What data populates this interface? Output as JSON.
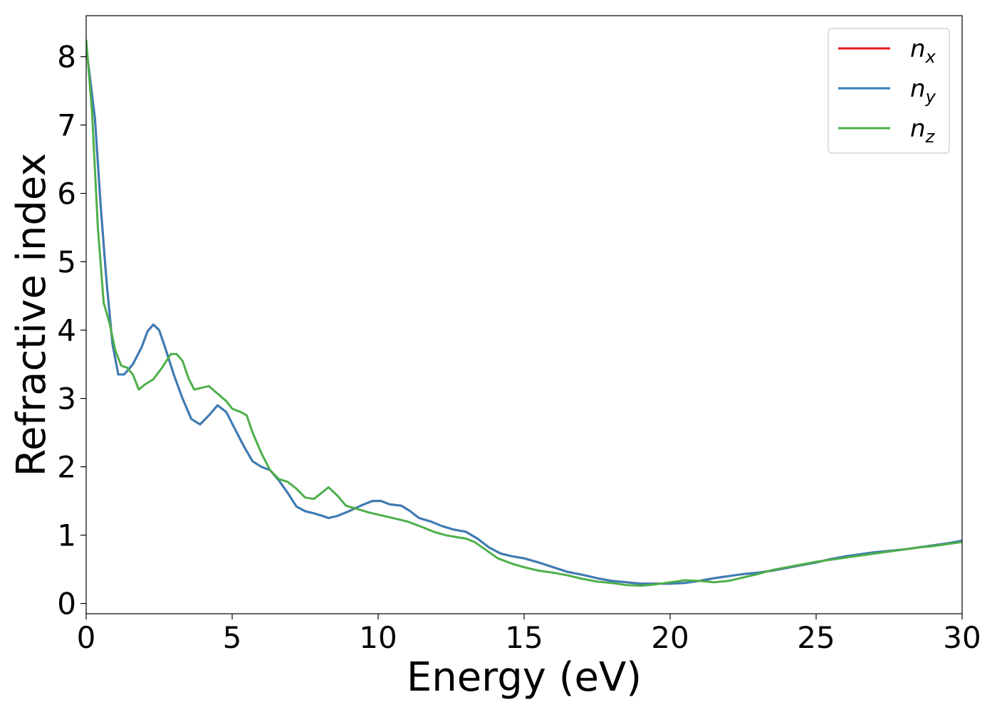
{
  "chart_data": {
    "type": "line",
    "xlabel": "Energy (eV)",
    "ylabel": "Refractive index",
    "xlim": [
      0,
      30
    ],
    "ylim": [
      -0.15,
      8.6
    ],
    "x_ticks": [
      "0",
      "5",
      "10",
      "15",
      "20",
      "25",
      "30"
    ],
    "y_ticks": [
      "0",
      "1",
      "2",
      "3",
      "4",
      "5",
      "6",
      "7",
      "8"
    ],
    "grid": false,
    "legend_position": "top-right",
    "series": [
      {
        "name": "n",
        "subscript": "x",
        "color": "#e41a1c",
        "points": [
          [
            0,
            8.15
          ],
          [
            0.3,
            7.1
          ],
          [
            0.5,
            5.8
          ],
          [
            0.7,
            4.7
          ],
          [
            0.9,
            3.8
          ],
          [
            1.1,
            3.35
          ],
          [
            1.3,
            3.35
          ],
          [
            1.6,
            3.5
          ],
          [
            1.9,
            3.75
          ],
          [
            2.1,
            3.98
          ],
          [
            2.3,
            4.08
          ],
          [
            2.5,
            4.0
          ],
          [
            2.7,
            3.75
          ],
          [
            3.0,
            3.35
          ],
          [
            3.3,
            3.0
          ],
          [
            3.6,
            2.7
          ],
          [
            3.9,
            2.62
          ],
          [
            4.2,
            2.75
          ],
          [
            4.5,
            2.9
          ],
          [
            4.8,
            2.8
          ],
          [
            5.1,
            2.55
          ],
          [
            5.4,
            2.3
          ],
          [
            5.7,
            2.08
          ],
          [
            6.0,
            2.0
          ],
          [
            6.3,
            1.95
          ],
          [
            6.6,
            1.8
          ],
          [
            6.9,
            1.62
          ],
          [
            7.2,
            1.42
          ],
          [
            7.5,
            1.35
          ],
          [
            7.8,
            1.32
          ],
          [
            8.1,
            1.28
          ],
          [
            8.3,
            1.25
          ],
          [
            8.6,
            1.28
          ],
          [
            9.0,
            1.35
          ],
          [
            9.4,
            1.43
          ],
          [
            9.8,
            1.5
          ],
          [
            10.1,
            1.5
          ],
          [
            10.4,
            1.45
          ],
          [
            10.8,
            1.43
          ],
          [
            11.1,
            1.35
          ],
          [
            11.4,
            1.25
          ],
          [
            11.8,
            1.2
          ],
          [
            12.2,
            1.13
          ],
          [
            12.6,
            1.08
          ],
          [
            13.0,
            1.05
          ],
          [
            13.4,
            0.95
          ],
          [
            13.8,
            0.82
          ],
          [
            14.2,
            0.73
          ],
          [
            14.6,
            0.69
          ],
          [
            15.0,
            0.66
          ],
          [
            15.5,
            0.6
          ],
          [
            16.0,
            0.53
          ],
          [
            16.5,
            0.46
          ],
          [
            17.0,
            0.42
          ],
          [
            17.5,
            0.37
          ],
          [
            18.0,
            0.33
          ],
          [
            18.5,
            0.31
          ],
          [
            19.0,
            0.29
          ],
          [
            19.5,
            0.29
          ],
          [
            20.0,
            0.29
          ],
          [
            20.5,
            0.3
          ],
          [
            21.0,
            0.33
          ],
          [
            21.5,
            0.37
          ],
          [
            22.0,
            0.4
          ],
          [
            22.5,
            0.43
          ],
          [
            23.0,
            0.45
          ],
          [
            23.5,
            0.48
          ],
          [
            24.0,
            0.52
          ],
          [
            24.5,
            0.56
          ],
          [
            25.0,
            0.6
          ],
          [
            25.5,
            0.65
          ],
          [
            26.0,
            0.69
          ],
          [
            26.5,
            0.72
          ],
          [
            27.0,
            0.75
          ],
          [
            27.5,
            0.77
          ],
          [
            28.0,
            0.79
          ],
          [
            28.5,
            0.82
          ],
          [
            29.0,
            0.85
          ],
          [
            29.5,
            0.88
          ],
          [
            30.0,
            0.92
          ]
        ]
      },
      {
        "name": "n",
        "subscript": "y",
        "color": "#377eb8",
        "points": [
          [
            0,
            8.15
          ],
          [
            0.3,
            7.1
          ],
          [
            0.5,
            5.8
          ],
          [
            0.7,
            4.7
          ],
          [
            0.9,
            3.8
          ],
          [
            1.1,
            3.35
          ],
          [
            1.3,
            3.35
          ],
          [
            1.6,
            3.5
          ],
          [
            1.9,
            3.75
          ],
          [
            2.1,
            3.98
          ],
          [
            2.3,
            4.08
          ],
          [
            2.5,
            4.0
          ],
          [
            2.7,
            3.75
          ],
          [
            3.0,
            3.35
          ],
          [
            3.3,
            3.0
          ],
          [
            3.6,
            2.7
          ],
          [
            3.9,
            2.62
          ],
          [
            4.2,
            2.75
          ],
          [
            4.5,
            2.9
          ],
          [
            4.8,
            2.8
          ],
          [
            5.1,
            2.55
          ],
          [
            5.4,
            2.3
          ],
          [
            5.7,
            2.08
          ],
          [
            6.0,
            2.0
          ],
          [
            6.3,
            1.95
          ],
          [
            6.6,
            1.8
          ],
          [
            6.9,
            1.62
          ],
          [
            7.2,
            1.42
          ],
          [
            7.5,
            1.35
          ],
          [
            7.8,
            1.32
          ],
          [
            8.1,
            1.28
          ],
          [
            8.3,
            1.25
          ],
          [
            8.6,
            1.28
          ],
          [
            9.0,
            1.35
          ],
          [
            9.4,
            1.43
          ],
          [
            9.8,
            1.5
          ],
          [
            10.1,
            1.5
          ],
          [
            10.4,
            1.45
          ],
          [
            10.8,
            1.43
          ],
          [
            11.1,
            1.35
          ],
          [
            11.4,
            1.25
          ],
          [
            11.8,
            1.2
          ],
          [
            12.2,
            1.13
          ],
          [
            12.6,
            1.08
          ],
          [
            13.0,
            1.05
          ],
          [
            13.4,
            0.95
          ],
          [
            13.8,
            0.82
          ],
          [
            14.2,
            0.73
          ],
          [
            14.6,
            0.69
          ],
          [
            15.0,
            0.66
          ],
          [
            15.5,
            0.6
          ],
          [
            16.0,
            0.53
          ],
          [
            16.5,
            0.46
          ],
          [
            17.0,
            0.42
          ],
          [
            17.5,
            0.37
          ],
          [
            18.0,
            0.33
          ],
          [
            18.5,
            0.31
          ],
          [
            19.0,
            0.29
          ],
          [
            19.5,
            0.29
          ],
          [
            20.0,
            0.29
          ],
          [
            20.5,
            0.3
          ],
          [
            21.0,
            0.33
          ],
          [
            21.5,
            0.37
          ],
          [
            22.0,
            0.4
          ],
          [
            22.5,
            0.43
          ],
          [
            23.0,
            0.45
          ],
          [
            23.5,
            0.48
          ],
          [
            24.0,
            0.52
          ],
          [
            24.5,
            0.56
          ],
          [
            25.0,
            0.6
          ],
          [
            25.5,
            0.65
          ],
          [
            26.0,
            0.69
          ],
          [
            26.5,
            0.72
          ],
          [
            27.0,
            0.75
          ],
          [
            27.5,
            0.77
          ],
          [
            28.0,
            0.79
          ],
          [
            28.5,
            0.82
          ],
          [
            29.0,
            0.85
          ],
          [
            29.5,
            0.88
          ],
          [
            30.0,
            0.92
          ]
        ]
      },
      {
        "name": "n",
        "subscript": "z",
        "color": "#4daf4a",
        "points": [
          [
            0,
            8.25
          ],
          [
            0.2,
            7.2
          ],
          [
            0.4,
            5.5
          ],
          [
            0.6,
            4.4
          ],
          [
            0.8,
            4.1
          ],
          [
            1.0,
            3.7
          ],
          [
            1.2,
            3.48
          ],
          [
            1.4,
            3.45
          ],
          [
            1.6,
            3.35
          ],
          [
            1.8,
            3.13
          ],
          [
            2.0,
            3.2
          ],
          [
            2.3,
            3.28
          ],
          [
            2.6,
            3.45
          ],
          [
            2.9,
            3.65
          ],
          [
            3.1,
            3.65
          ],
          [
            3.3,
            3.55
          ],
          [
            3.5,
            3.3
          ],
          [
            3.7,
            3.13
          ],
          [
            3.9,
            3.15
          ],
          [
            4.2,
            3.18
          ],
          [
            4.5,
            3.07
          ],
          [
            4.8,
            2.96
          ],
          [
            5.0,
            2.85
          ],
          [
            5.3,
            2.8
          ],
          [
            5.5,
            2.75
          ],
          [
            5.7,
            2.5
          ],
          [
            6.0,
            2.2
          ],
          [
            6.3,
            1.95
          ],
          [
            6.6,
            1.82
          ],
          [
            6.9,
            1.78
          ],
          [
            7.2,
            1.68
          ],
          [
            7.5,
            1.55
          ],
          [
            7.8,
            1.53
          ],
          [
            8.1,
            1.63
          ],
          [
            8.3,
            1.7
          ],
          [
            8.6,
            1.58
          ],
          [
            8.9,
            1.43
          ],
          [
            9.3,
            1.38
          ],
          [
            9.7,
            1.33
          ],
          [
            10.0,
            1.3
          ],
          [
            10.5,
            1.25
          ],
          [
            11.0,
            1.2
          ],
          [
            11.5,
            1.12
          ],
          [
            11.9,
            1.05
          ],
          [
            12.3,
            1.0
          ],
          [
            12.7,
            0.97
          ],
          [
            13.0,
            0.95
          ],
          [
            13.3,
            0.9
          ],
          [
            13.7,
            0.78
          ],
          [
            14.1,
            0.66
          ],
          [
            14.6,
            0.58
          ],
          [
            15.0,
            0.53
          ],
          [
            15.5,
            0.48
          ],
          [
            16.0,
            0.45
          ],
          [
            16.5,
            0.41
          ],
          [
            17.0,
            0.36
          ],
          [
            17.5,
            0.32
          ],
          [
            18.0,
            0.3
          ],
          [
            18.5,
            0.27
          ],
          [
            19.0,
            0.26
          ],
          [
            19.5,
            0.28
          ],
          [
            20.0,
            0.31
          ],
          [
            20.5,
            0.34
          ],
          [
            21.0,
            0.33
          ],
          [
            21.5,
            0.31
          ],
          [
            22.0,
            0.33
          ],
          [
            22.5,
            0.38
          ],
          [
            23.0,
            0.43
          ],
          [
            23.5,
            0.49
          ],
          [
            24.0,
            0.53
          ],
          [
            24.5,
            0.57
          ],
          [
            25.0,
            0.61
          ],
          [
            25.5,
            0.64
          ],
          [
            26.0,
            0.67
          ],
          [
            26.5,
            0.7
          ],
          [
            27.0,
            0.73
          ],
          [
            27.5,
            0.76
          ],
          [
            28.0,
            0.79
          ],
          [
            28.5,
            0.82
          ],
          [
            29.0,
            0.84
          ],
          [
            29.5,
            0.87
          ],
          [
            30.0,
            0.9
          ]
        ]
      }
    ]
  }
}
